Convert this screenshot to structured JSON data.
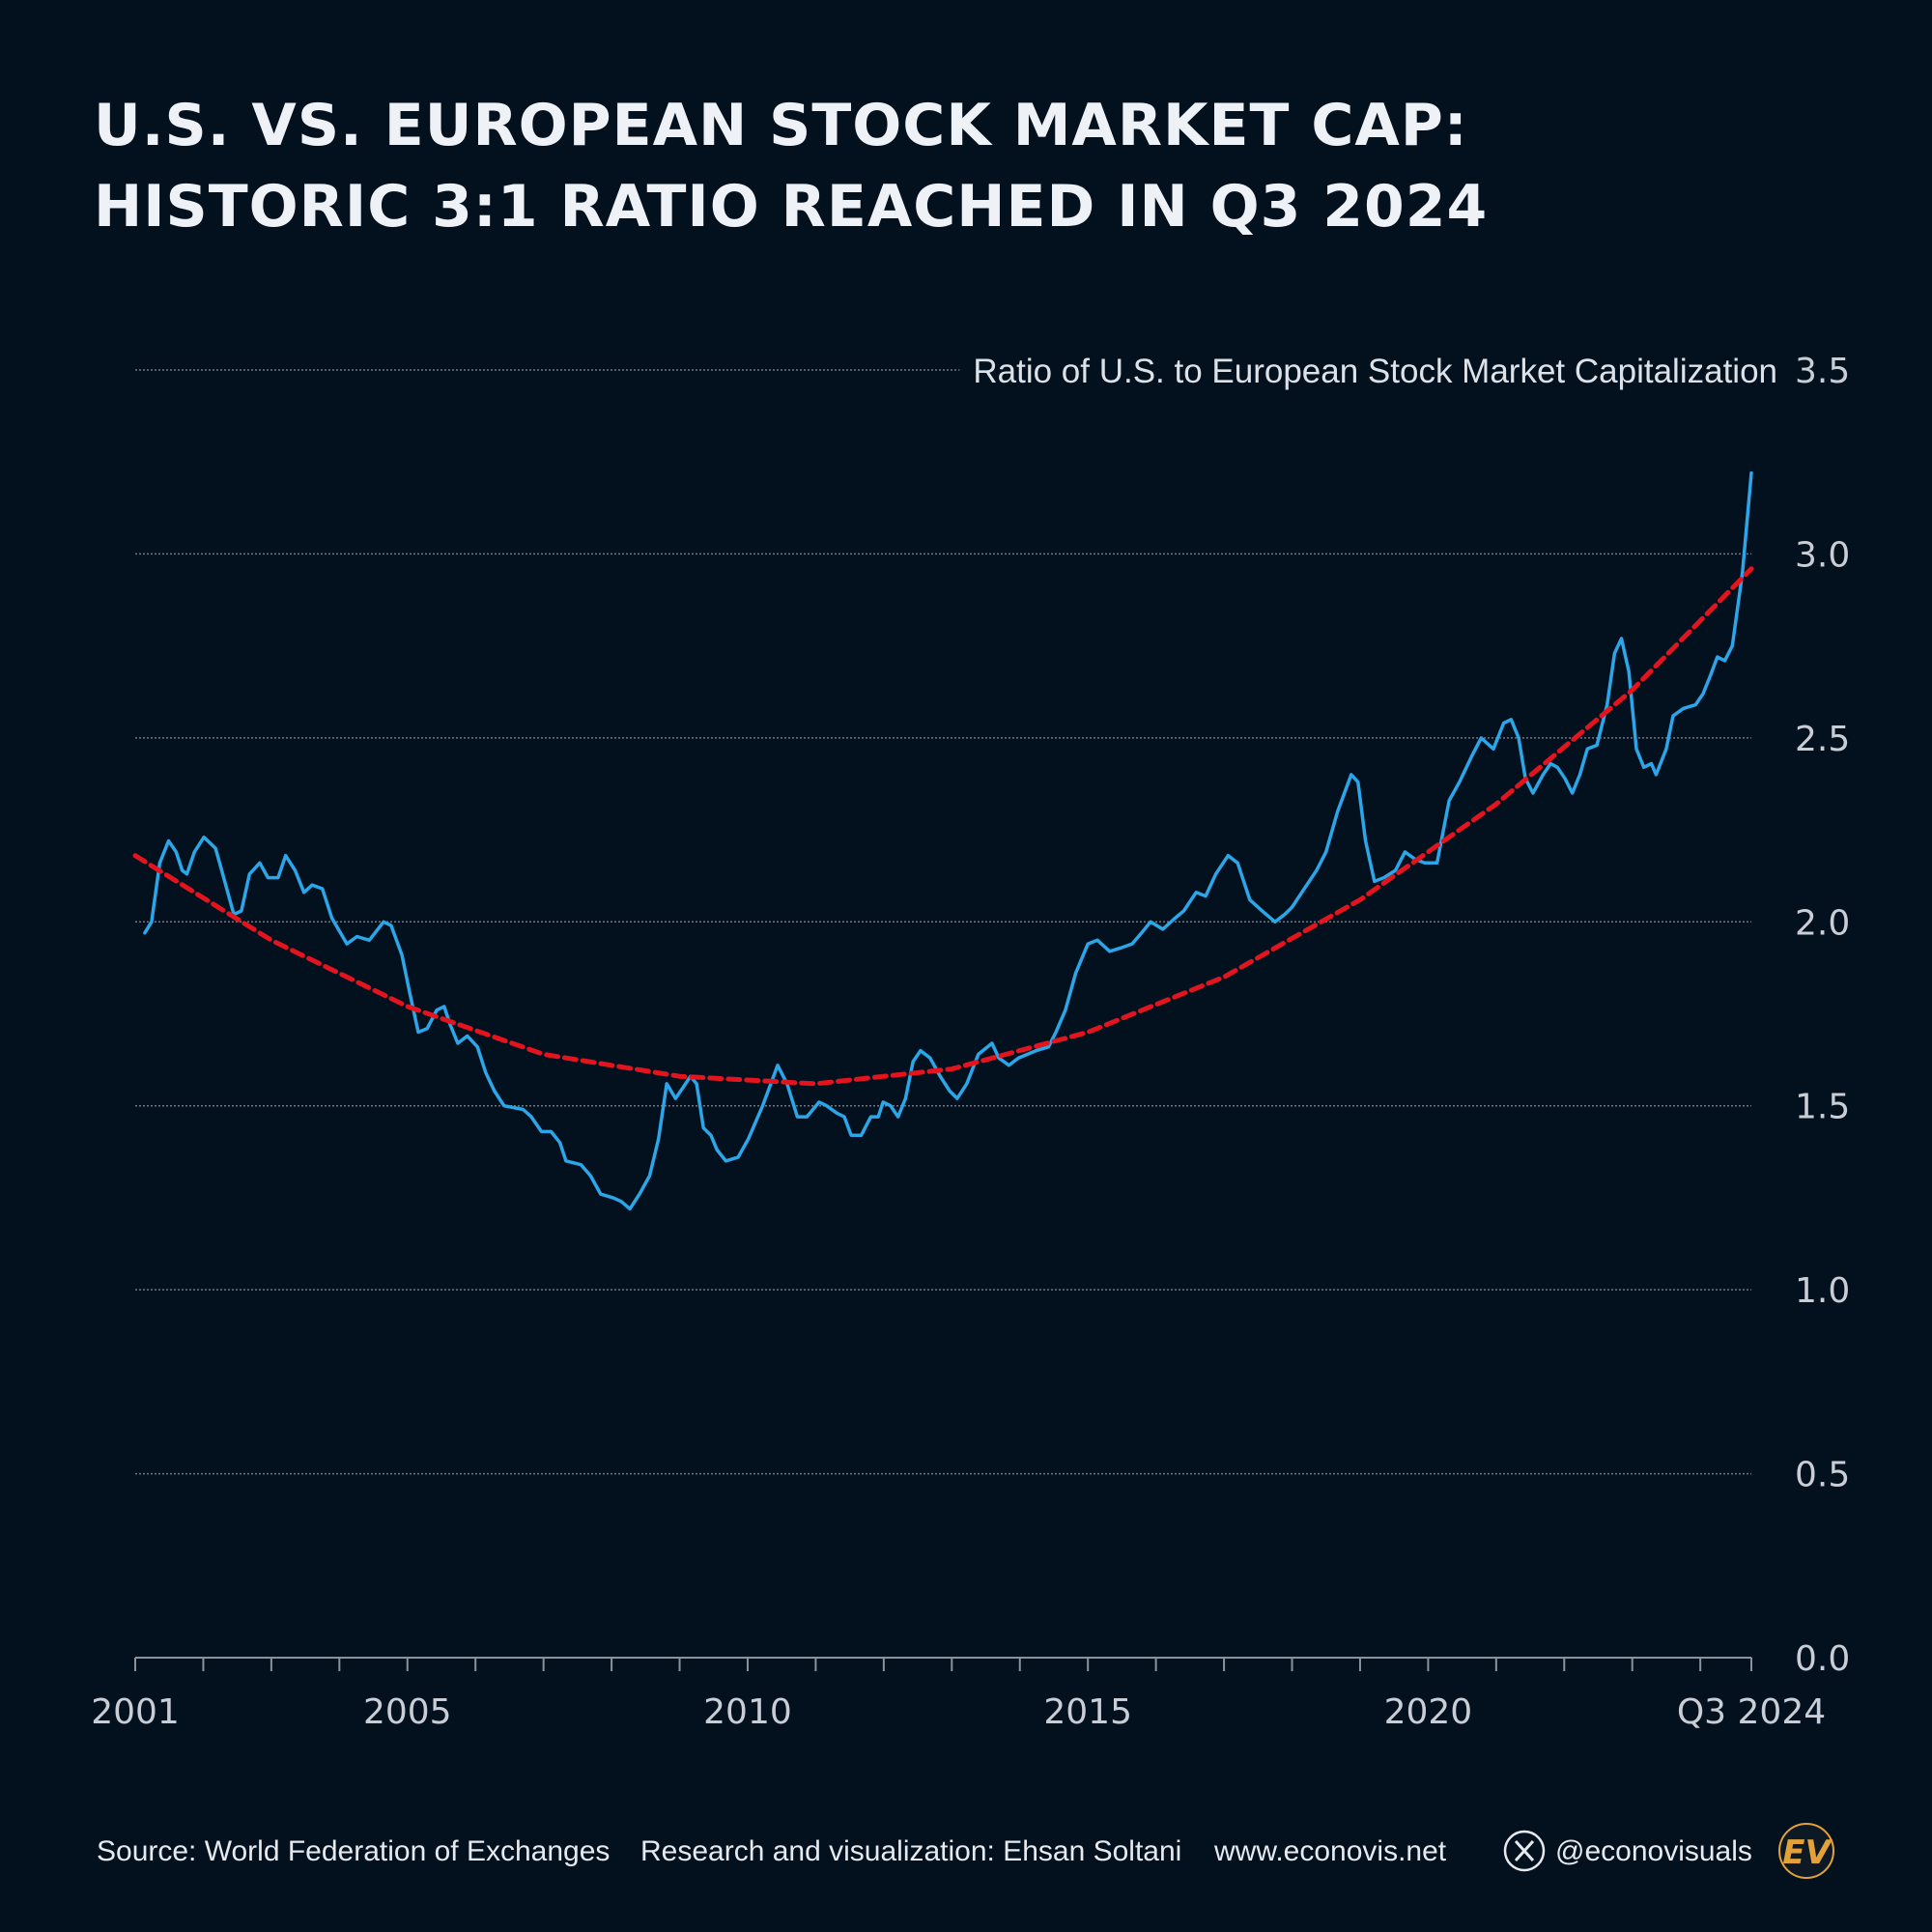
{
  "chart_data": {
    "type": "line",
    "title": [
      "U.S. VS. EUROPEAN STOCK MARKET CAP:",
      "HISTORIC 3:1 RATIO REACHED IN Q3 2024"
    ],
    "y_label": "Ratio of U.S. to European Stock Market Capitalization",
    "xlim": [
      2001,
      2024.75
    ],
    "xticks": [
      2001,
      2005,
      2010,
      2015,
      2020,
      {
        "value": 2024.75,
        "label": "Q3 2024"
      }
    ],
    "xminorticks": [
      2002,
      2003,
      2004,
      2006,
      2007,
      2008,
      2009,
      2011,
      2012,
      2013,
      2014,
      2016,
      2017,
      2018,
      2019,
      2021,
      2022,
      2023,
      2024
    ],
    "ylim": [
      0,
      3.5
    ],
    "yticks": [
      0.0,
      0.5,
      1.0,
      1.5,
      2.0,
      2.5,
      3.0,
      3.5
    ],
    "grid": true,
    "series": [
      {
        "color": "#2ba6e8",
        "dashed": false,
        "x": [
          2001.14,
          2001.24,
          2001.36,
          2001.49,
          2001.6,
          2001.69,
          2001.76,
          2001.87,
          2002.01,
          2002.18,
          2002.27,
          2002.45,
          2002.56,
          2002.68,
          2002.83,
          2002.95,
          2003.1,
          2003.21,
          2003.35,
          2003.48,
          2003.6,
          2003.75,
          2003.89,
          2004.11,
          2004.26,
          2004.44,
          2004.65,
          2004.76,
          2004.92,
          2005.03,
          2005.16,
          2005.29,
          2005.43,
          2005.54,
          2005.63,
          2005.74,
          2005.88,
          2006.03,
          2006.15,
          2006.28,
          2006.42,
          2006.7,
          2006.82,
          2006.97,
          2007.11,
          2007.24,
          2007.33,
          2007.55,
          2007.69,
          2007.84,
          2008.02,
          2008.14,
          2008.27,
          2008.41,
          2008.56,
          2008.69,
          2008.81,
          2008.94,
          2009.05,
          2009.16,
          2009.25,
          2009.35,
          2009.46,
          2009.55,
          2009.68,
          2009.86,
          2010.01,
          2010.22,
          2010.44,
          2010.58,
          2010.73,
          2010.87,
          2011.05,
          2011.16,
          2011.31,
          2011.42,
          2011.52,
          2011.67,
          2011.81,
          2011.92,
          2011.99,
          2012.1,
          2012.21,
          2012.32,
          2012.43,
          2012.54,
          2012.68,
          2012.83,
          2012.97,
          2013.08,
          2013.22,
          2013.39,
          2013.59,
          2013.69,
          2013.84,
          2013.98,
          2014.24,
          2014.42,
          2014.53,
          2014.67,
          2014.82,
          2015.0,
          2015.14,
          2015.32,
          2015.5,
          2015.65,
          2015.79,
          2015.92,
          2016.1,
          2016.28,
          2016.41,
          2016.59,
          2016.73,
          2016.88,
          2017.06,
          2017.2,
          2017.38,
          2017.56,
          2017.75,
          2017.89,
          2018.0,
          2018.18,
          2018.36,
          2018.5,
          2018.67,
          2018.87,
          2018.97,
          2019.08,
          2019.21,
          2019.35,
          2019.52,
          2019.66,
          2019.81,
          2019.95,
          2020.13,
          2020.31,
          2020.46,
          2020.64,
          2020.78,
          2020.96,
          2021.11,
          2021.22,
          2021.33,
          2021.43,
          2021.54,
          2021.69,
          2021.8,
          2021.9,
          2022.01,
          2022.12,
          2022.23,
          2022.34,
          2022.48,
          2022.63,
          2022.74,
          2022.84,
          2022.95,
          2023.06,
          2023.17,
          2023.28,
          2023.35,
          2023.5,
          2023.6,
          2023.75,
          2023.93,
          2024.04,
          2024.15,
          2024.25,
          2024.36,
          2024.47,
          2024.62,
          2024.75
        ],
        "values": [
          1.97,
          2.0,
          2.16,
          2.22,
          2.19,
          2.14,
          2.13,
          2.19,
          2.23,
          2.2,
          2.14,
          2.02,
          2.03,
          2.13,
          2.16,
          2.12,
          2.12,
          2.18,
          2.14,
          2.08,
          2.1,
          2.09,
          2.01,
          1.94,
          1.96,
          1.95,
          2.0,
          1.99,
          1.91,
          1.81,
          1.7,
          1.71,
          1.76,
          1.77,
          1.72,
          1.67,
          1.69,
          1.66,
          1.59,
          1.54,
          1.5,
          1.49,
          1.47,
          1.43,
          1.43,
          1.4,
          1.35,
          1.34,
          1.31,
          1.26,
          1.25,
          1.24,
          1.22,
          1.26,
          1.31,
          1.41,
          1.56,
          1.52,
          1.55,
          1.58,
          1.56,
          1.44,
          1.42,
          1.38,
          1.35,
          1.36,
          1.41,
          1.5,
          1.61,
          1.56,
          1.47,
          1.47,
          1.51,
          1.5,
          1.48,
          1.47,
          1.42,
          1.42,
          1.47,
          1.47,
          1.51,
          1.5,
          1.47,
          1.52,
          1.62,
          1.65,
          1.63,
          1.58,
          1.54,
          1.52,
          1.56,
          1.64,
          1.67,
          1.63,
          1.61,
          1.63,
          1.65,
          1.66,
          1.7,
          1.76,
          1.86,
          1.94,
          1.95,
          1.92,
          1.93,
          1.94,
          1.97,
          2.0,
          1.98,
          2.01,
          2.03,
          2.08,
          2.07,
          2.13,
          2.18,
          2.16,
          2.06,
          2.03,
          2.0,
          2.02,
          2.04,
          2.09,
          2.14,
          2.19,
          2.3,
          2.4,
          2.38,
          2.22,
          2.11,
          2.12,
          2.14,
          2.19,
          2.17,
          2.16,
          2.16,
          2.33,
          2.38,
          2.45,
          2.5,
          2.47,
          2.54,
          2.55,
          2.5,
          2.39,
          2.35,
          2.4,
          2.43,
          2.42,
          2.39,
          2.35,
          2.4,
          2.47,
          2.48,
          2.59,
          2.73,
          2.77,
          2.68,
          2.47,
          2.42,
          2.43,
          2.4,
          2.47,
          2.56,
          2.58,
          2.59,
          2.62,
          2.67,
          2.72,
          2.71,
          2.75,
          2.95,
          3.22
        ]
      },
      {
        "color": "#e3141d",
        "dashed": true,
        "x": [
          2001,
          2003,
          2005,
          2007,
          2009,
          2011,
          2013,
          2015,
          2017,
          2019,
          2021,
          2023,
          2024.75
        ],
        "values": [
          2.18,
          1.95,
          1.77,
          1.64,
          1.58,
          1.56,
          1.6,
          1.7,
          1.85,
          2.06,
          2.32,
          2.63,
          2.96
        ]
      }
    ],
    "footer": {
      "source": "Source: World Federation of Exchanges",
      "credit": "Research and visualization: Ehsan Soltani",
      "website": "www.econovis.net",
      "handle": "@econovisuals",
      "logo": "EV"
    }
  }
}
